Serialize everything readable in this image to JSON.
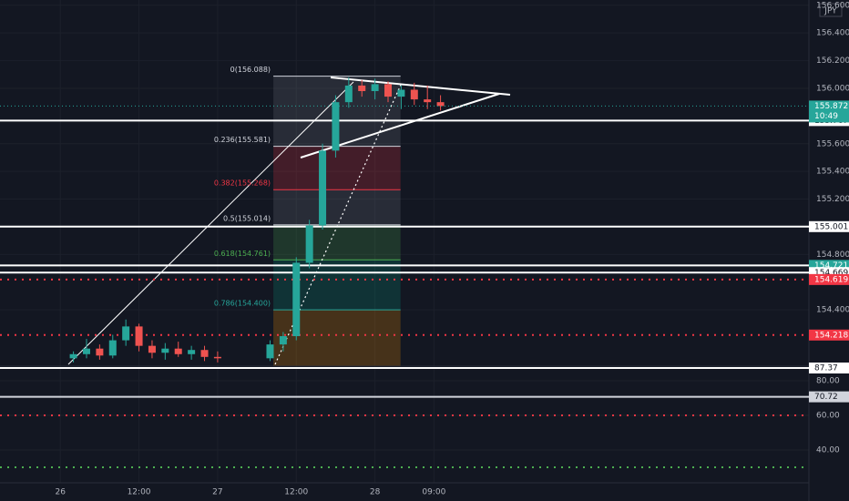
{
  "currency": "JPY",
  "chart_data": [
    {
      "type": "candlestick",
      "x": [
        2,
        4,
        6,
        8,
        10,
        12,
        14,
        16,
        18,
        20,
        22,
        24,
        32,
        34,
        36,
        38,
        40,
        42,
        44,
        46,
        48,
        50,
        52,
        54,
        56,
        58
      ],
      "open": [
        154.05,
        154.08,
        154.12,
        154.07,
        154.18,
        154.28,
        154.14,
        154.09,
        154.12,
        154.08,
        154.11,
        154.06,
        154.05,
        154.15,
        154.21,
        154.74,
        155.01,
        155.55,
        155.9,
        156.02,
        155.98,
        156.03,
        155.94,
        155.99,
        155.92,
        155.9
      ],
      "high": [
        154.1,
        154.19,
        154.15,
        154.22,
        154.33,
        154.3,
        154.18,
        154.16,
        154.17,
        154.14,
        154.14,
        154.1,
        154.18,
        154.24,
        154.78,
        155.05,
        155.6,
        155.95,
        156.08,
        156.06,
        156.07,
        156.05,
        156.02,
        156.04,
        156.02,
        155.95
      ],
      "low": [
        154.02,
        154.05,
        154.04,
        154.05,
        154.14,
        154.1,
        154.05,
        154.04,
        154.06,
        154.04,
        154.03,
        154.02,
        154.03,
        154.1,
        154.18,
        154.7,
        154.98,
        155.5,
        155.86,
        155.94,
        155.92,
        155.9,
        155.85,
        155.88,
        155.85,
        155.84
      ],
      "close": [
        154.08,
        154.12,
        154.07,
        154.18,
        154.28,
        154.14,
        154.09,
        154.12,
        154.08,
        154.11,
        154.06,
        154.05,
        154.15,
        154.21,
        154.74,
        155.01,
        155.55,
        155.9,
        156.02,
        155.98,
        156.03,
        155.94,
        155.99,
        155.92,
        155.9,
        155.872
      ],
      "up_color": "#26a69a",
      "down_color": "#ef5350",
      "countdown": "10:49",
      "xlim": [
        -9.2,
        114.2
      ],
      "xticks": [
        {
          "value": 0,
          "label": "26"
        },
        {
          "value": 12,
          "label": "12:00"
        },
        {
          "value": 24,
          "label": "27"
        },
        {
          "value": 36,
          "label": "12:00"
        },
        {
          "value": 48,
          "label": "28"
        },
        {
          "value": 57,
          "label": "09:00"
        }
      ],
      "ylim": [
        153.993,
        156.638
      ],
      "yticks": [
        {
          "value": 156.6,
          "label": "156.600"
        },
        {
          "value": 156.4,
          "label": "156.400"
        },
        {
          "value": 156.2,
          "label": "156.200"
        },
        {
          "value": 156.0,
          "label": "156.000"
        },
        {
          "value": 155.6,
          "label": "155.600"
        },
        {
          "value": 155.4,
          "label": "155.400"
        },
        {
          "value": 155.2,
          "label": "155.200"
        },
        {
          "value": 154.8,
          "label": "154.800"
        },
        {
          "value": 154.4,
          "label": "154.400"
        }
      ],
      "levels": [
        {
          "value": 155.767,
          "color": "#ffffff",
          "style": "solid",
          "label_color": "#ffffff",
          "show_label": true
        },
        {
          "value": 155.001,
          "color": "#ffffff",
          "style": "solid",
          "label_color": "#ffffff",
          "show_label": true
        },
        {
          "value": 154.721,
          "color": "#ffffff",
          "style": "solid",
          "label_color": "#26a69a",
          "show_label": true
        },
        {
          "value": 154.669,
          "color": "#ffffff",
          "style": "solid",
          "label_color": "#ffffff",
          "show_label": true
        },
        {
          "value": 154.619,
          "color": "#f23645",
          "style": "dotted",
          "label_color": "#f23645",
          "show_label": true
        },
        {
          "value": 154.218,
          "color": "#f23645",
          "style": "dotted",
          "label_color": "#f23645",
          "show_label": true
        }
      ],
      "fibonacci": {
        "x": [
          32.5,
          51.9
        ],
        "prices": [
          156.088,
          155.581,
          155.268,
          155.014,
          154.761,
          154.4
        ],
        "value_labels": [
          "0(156.088)",
          "0.236(155.581)",
          "0.382(155.268)",
          "0.5(155.014)",
          "0.618(154.761)",
          "0.786(154.400)"
        ],
        "colors": [
          "#d1d4dc",
          "#d1d4dc",
          "#f23645",
          "#d1d4dc",
          "#4caf50",
          "#26a69a"
        ],
        "band_colors": [
          "#787b86",
          "#f23645",
          "#787b86",
          "#4caf50",
          "#089981",
          "#ff9800"
        ]
      }
    },
    {
      "type": "indicator",
      "ylim": [
        21.05,
        88.42
      ],
      "yticks": [
        {
          "value": 80,
          "label": "80.00"
        },
        {
          "value": 60,
          "label": "60.00"
        },
        {
          "value": 40,
          "label": "40.00"
        }
      ],
      "levels": [
        {
          "value": 87.37,
          "color": "#ffffff",
          "style": "solid",
          "label_color": "#ffffff",
          "show_label": true
        },
        {
          "value": 70.72,
          "color": "#d1d4dc",
          "style": "solid",
          "label_color": "#d1d4dc",
          "show_label": true
        },
        {
          "value": 60,
          "color": "#f23645",
          "style": "dotted",
          "label_color": "#f23645",
          "show_label": false
        },
        {
          "value": 30,
          "color": "#4caf50",
          "style": "dotted",
          "label_color": "#4caf50",
          "show_label": false
        }
      ]
    }
  ]
}
